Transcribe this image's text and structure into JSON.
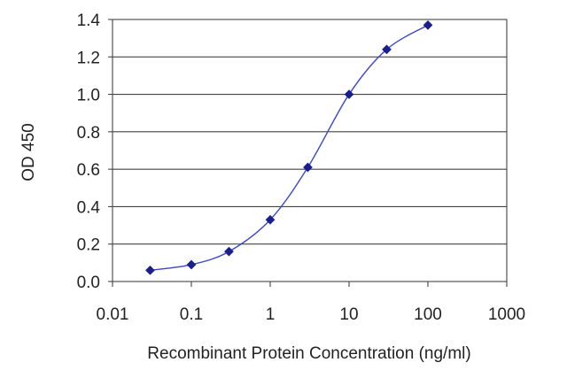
{
  "chart_data": {
    "type": "line",
    "title": "",
    "xlabel": "Recombinant Protein Concentration (ng/ml)",
    "ylabel": "OD 450",
    "xscale": "log",
    "xlim": [
      0.01,
      1000
    ],
    "ylim": [
      0,
      1.4
    ],
    "x_tick_labels": [
      "0.01",
      "0.1",
      "1",
      "10",
      "100",
      "1000"
    ],
    "y_tick_labels": [
      "0.0",
      "0.2",
      "0.4",
      "0.6",
      "0.8",
      "1.0",
      "1.2",
      "1.4"
    ],
    "grid": "horizontal",
    "legend": "none",
    "series": [
      {
        "x": [
          0.03,
          0.1,
          0.3,
          1,
          3,
          10,
          30,
          100
        ],
        "y": [
          0.06,
          0.09,
          0.16,
          0.33,
          0.61,
          1.0,
          1.24,
          1.37
        ]
      }
    ],
    "colors": {
      "series": "#3a47c8",
      "marker": "#1a1f8c",
      "grid": "#444444",
      "axis": "#444444"
    }
  }
}
